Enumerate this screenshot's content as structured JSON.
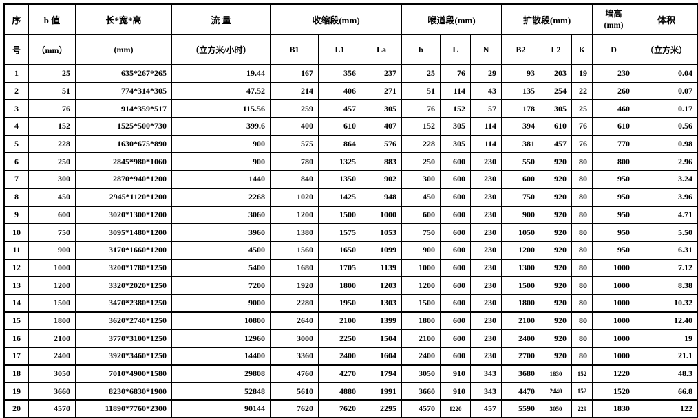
{
  "header": {
    "seq": {
      "line1": "序",
      "line2": "号"
    },
    "b_value": {
      "line1": "b 值",
      "line2": "（mm）"
    },
    "lwh": {
      "line1": "长*宽*高",
      "line2": "(mm)"
    },
    "flow": {
      "line1": "流 量",
      "line2": "（立方米/小时）"
    },
    "group_contraction": {
      "label": "收缩段(mm)",
      "subs": [
        "B1",
        "L1",
        "La"
      ]
    },
    "group_throat": {
      "label": "喉道段(mm)",
      "subs": [
        "b",
        "L",
        "N"
      ]
    },
    "group_diffusion": {
      "label": "扩散段(mm)",
      "subs": [
        "B2",
        "L2",
        "K"
      ]
    },
    "wall": {
      "line1": "墙高",
      "line2": "(mm)",
      "sub": "D"
    },
    "volume": {
      "line1": "体积",
      "line2": "（立方米）"
    }
  },
  "columns": [
    "seq",
    "b_value",
    "lwh",
    "flow",
    "B1",
    "L1",
    "La",
    "b",
    "L",
    "N",
    "B2",
    "L2",
    "K",
    "D",
    "volume"
  ],
  "rows": [
    [
      "1",
      "25",
      "635*267*265",
      "19.44",
      "167",
      "356",
      "237",
      "25",
      "76",
      "29",
      "93",
      "203",
      "19",
      "230",
      "0.04"
    ],
    [
      "2",
      "51",
      "774*314*305",
      "47.52",
      "214",
      "406",
      "271",
      "51",
      "114",
      "43",
      "135",
      "254",
      "22",
      "260",
      "0.07"
    ],
    [
      "3",
      "76",
      "914*359*517",
      "115.56",
      "259",
      "457",
      "305",
      "76",
      "152",
      "57",
      "178",
      "305",
      "25",
      "460",
      "0.17"
    ],
    [
      "4",
      "152",
      "1525*500*730",
      "399.6",
      "400",
      "610",
      "407",
      "152",
      "305",
      "114",
      "394",
      "610",
      "76",
      "610",
      "0.56"
    ],
    [
      "5",
      "228",
      "1630*675*890",
      "900",
      "575",
      "864",
      "576",
      "228",
      "305",
      "114",
      "381",
      "457",
      "76",
      "770",
      "0.98"
    ],
    [
      "6",
      "250",
      "2845*980*1060",
      "900",
      "780",
      "1325",
      "883",
      "250",
      "600",
      "230",
      "550",
      "920",
      "80",
      "800",
      "2.96"
    ],
    [
      "7",
      "300",
      "2870*940*1200",
      "1440",
      "840",
      "1350",
      "902",
      "300",
      "600",
      "230",
      "600",
      "920",
      "80",
      "950",
      "3.24"
    ],
    [
      "8",
      "450",
      "2945*1120*1200",
      "2268",
      "1020",
      "1425",
      "948",
      "450",
      "600",
      "230",
      "750",
      "920",
      "80",
      "950",
      "3.96"
    ],
    [
      "9",
      "600",
      "3020*1300*1200",
      "3060",
      "1200",
      "1500",
      "1000",
      "600",
      "600",
      "230",
      "900",
      "920",
      "80",
      "950",
      "4.71"
    ],
    [
      "10",
      "750",
      "3095*1480*1200",
      "3960",
      "1380",
      "1575",
      "1053",
      "750",
      "600",
      "230",
      "1050",
      "920",
      "80",
      "950",
      "5.50"
    ],
    [
      "11",
      "900",
      "3170*1660*1200",
      "4500",
      "1560",
      "1650",
      "1099",
      "900",
      "600",
      "230",
      "1200",
      "920",
      "80",
      "950",
      "6.31"
    ],
    [
      "12",
      "1000",
      "3200*1780*1250",
      "5400",
      "1680",
      "1705",
      "1139",
      "1000",
      "600",
      "230",
      "1300",
      "920",
      "80",
      "1000",
      "7.12"
    ],
    [
      "13",
      "1200",
      "3320*2020*1250",
      "7200",
      "1920",
      "1800",
      "1203",
      "1200",
      "600",
      "230",
      "1500",
      "920",
      "80",
      "1000",
      "8.38"
    ],
    [
      "14",
      "1500",
      "3470*2380*1250",
      "9000",
      "2280",
      "1950",
      "1303",
      "1500",
      "600",
      "230",
      "1800",
      "920",
      "80",
      "1000",
      "10.32"
    ],
    [
      "15",
      "1800",
      "3620*2740*1250",
      "10800",
      "2640",
      "2100",
      "1399",
      "1800",
      "600",
      "230",
      "2100",
      "920",
      "80",
      "1000",
      "12.40"
    ],
    [
      "16",
      "2100",
      "3770*3100*1250",
      "12960",
      "3000",
      "2250",
      "1504",
      "2100",
      "600",
      "230",
      "2400",
      "920",
      "80",
      "1000",
      "19"
    ],
    [
      "17",
      "2400",
      "3920*3460*1250",
      "14400",
      "3360",
      "2400",
      "1604",
      "2400",
      "600",
      "230",
      "2700",
      "920",
      "80",
      "1000",
      "21.1"
    ],
    [
      "18",
      "3050",
      "7010*4900*1580",
      "29808",
      "4760",
      "4270",
      "1794",
      "3050",
      "910",
      "343",
      "3680",
      "1830",
      "152",
      "1220",
      "48.3"
    ],
    [
      "19",
      "3660",
      "8230*6830*1900",
      "52848",
      "5610",
      "4880",
      "1991",
      "3660",
      "910",
      "343",
      "4470",
      "2440",
      "152",
      "1520",
      "66.8"
    ],
    [
      "20",
      "4570",
      "11890*7760*2300",
      "90144",
      "7620",
      "7620",
      "2295",
      "4570",
      "1220",
      "457",
      "5590",
      "3050",
      "229",
      "1830",
      "122"
    ]
  ]
}
